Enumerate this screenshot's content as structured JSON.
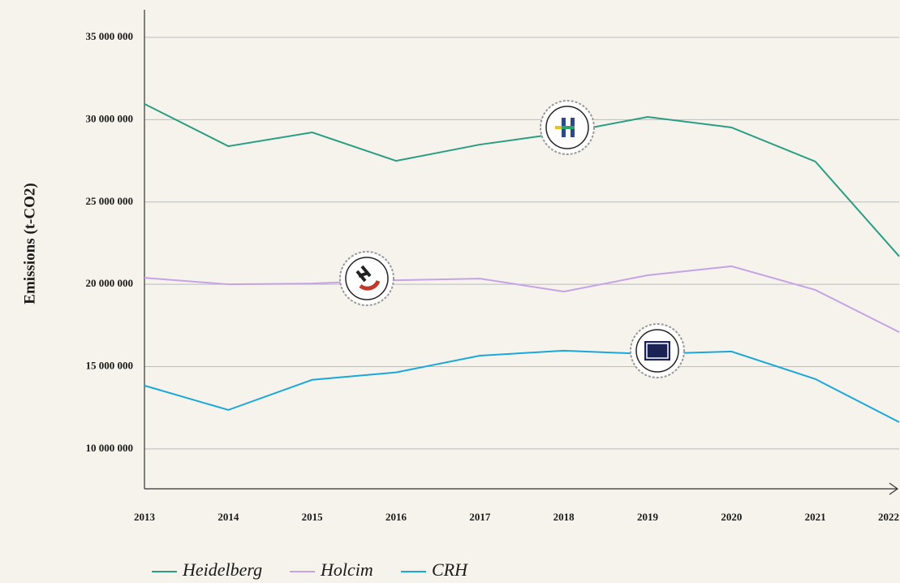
{
  "chart_data": {
    "type": "line",
    "y_label": "Emissions (t-CO2)",
    "categories": [
      "2013",
      "2014",
      "2015",
      "2016",
      "2017",
      "2018",
      "2019",
      "2020",
      "2021",
      "2022"
    ],
    "series": [
      {
        "name": "Heidelberg",
        "color": "#2a9d83",
        "values": [
          30960000,
          28390000,
          29230000,
          27500000,
          28490000,
          29200000,
          30170000,
          29530000,
          27460000,
          21700000
        ]
      },
      {
        "name": "Holcim",
        "color": "#c5a3e6",
        "values": [
          20400000,
          20000000,
          20050000,
          20250000,
          20350000,
          19560000,
          20550000,
          21100000,
          19660000,
          17100000
        ]
      },
      {
        "name": "CRH",
        "color": "#1ba7d8",
        "values": [
          13850000,
          12370000,
          14200000,
          14650000,
          15670000,
          15970000,
          15770000,
          15920000,
          14250000,
          11630000
        ]
      }
    ],
    "ylim": [
      7580000,
      36680000
    ],
    "yticks": [
      {
        "value": 10000000,
        "label": "10 000 000"
      },
      {
        "value": 15000000,
        "label": "15 000 000"
      },
      {
        "value": 20000000,
        "label": "20 000 000"
      },
      {
        "value": 25000000,
        "label": "25 000 000"
      },
      {
        "value": 30000000,
        "label": "30 000 000"
      },
      {
        "value": 35000000,
        "label": "35 000 000"
      }
    ],
    "grid": true
  }
}
